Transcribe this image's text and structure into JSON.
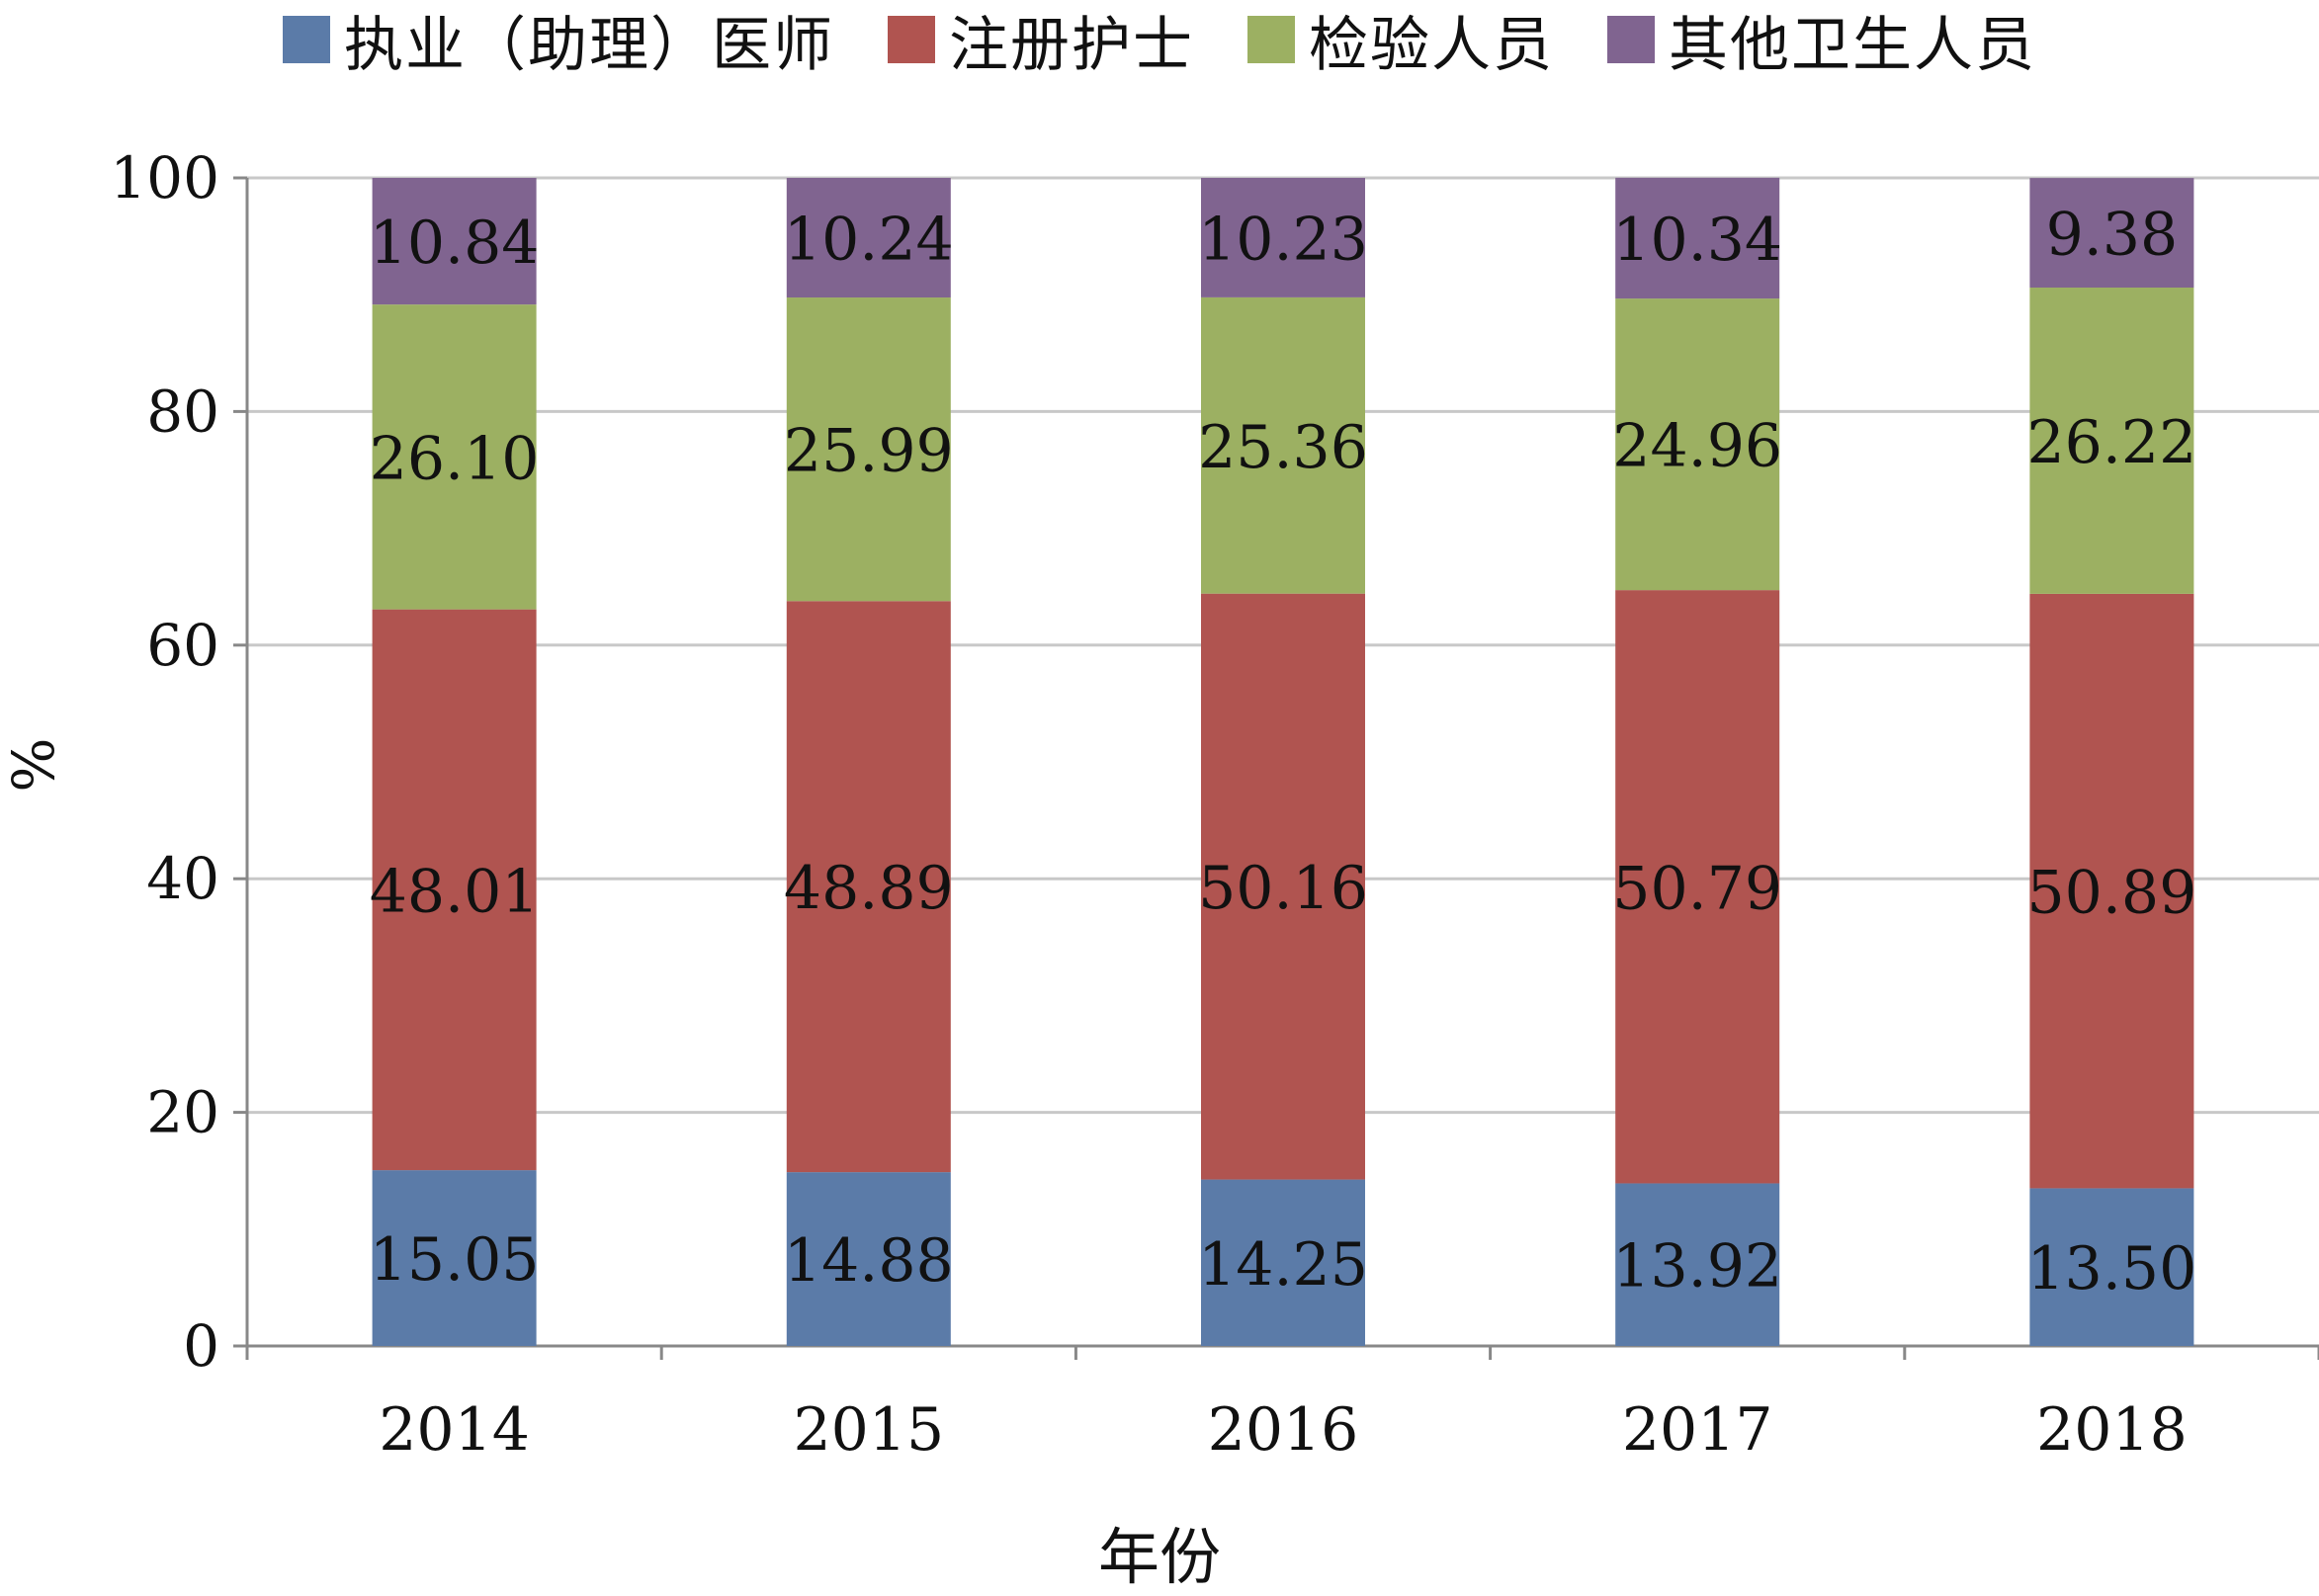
{
  "chart_data": {
    "type": "bar",
    "stacked": true,
    "categories": [
      "2014",
      "2015",
      "2016",
      "2017",
      "2018"
    ],
    "series": [
      {
        "name": "执业（助理）医师",
        "color": "#5B7BA8",
        "values": [
          15.05,
          14.88,
          14.25,
          13.92,
          13.5
        ]
      },
      {
        "name": "注册护士",
        "color": "#B05450",
        "values": [
          48.01,
          48.89,
          50.16,
          50.79,
          50.89
        ]
      },
      {
        "name": "检验人员",
        "color": "#9CB062",
        "values": [
          26.1,
          25.99,
          25.36,
          24.96,
          26.22
        ]
      },
      {
        "name": "其他卫生人员",
        "color": "#806490",
        "values": [
          10.84,
          10.24,
          10.23,
          10.34,
          9.38
        ]
      }
    ],
    "value_labels": [
      [
        "15.05",
        "14.88",
        "14.25",
        "13.92",
        "13.50"
      ],
      [
        "48.01",
        "48.89",
        "50.16",
        "50.79",
        "50.89"
      ],
      [
        "26.10",
        "25.99",
        "25.36",
        "24.96",
        "26.22"
      ],
      [
        "10.84",
        "10.24",
        "10.23",
        "10.34",
        "9.38"
      ]
    ],
    "xlabel": "年份",
    "ylabel": "%",
    "ylim": [
      0,
      100
    ],
    "yticks": [
      "0",
      "20",
      "40",
      "60",
      "80",
      "100"
    ],
    "grid": true,
    "legend_position": "top"
  }
}
